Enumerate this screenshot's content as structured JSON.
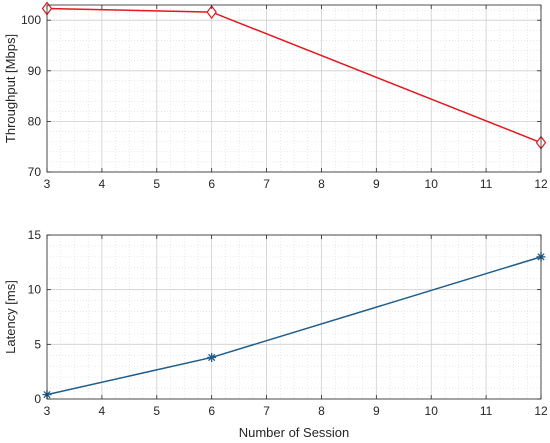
{
  "chart_data": [
    {
      "type": "line",
      "title": "",
      "xlabel": "",
      "ylabel": "Throughput [Mbps]",
      "xlim": [
        3,
        12
      ],
      "ylim": [
        70,
        103
      ],
      "xticks": [
        3,
        4,
        5,
        6,
        7,
        8,
        9,
        10,
        11,
        12
      ],
      "yticks": [
        70,
        80,
        90,
        100
      ],
      "grid": true,
      "minor_grid": true,
      "series": [
        {
          "color": "#e4181e",
          "marker": "diamond",
          "x": [
            3,
            6,
            12
          ],
          "y": [
            102.3,
            101.6,
            75.8
          ]
        }
      ]
    },
    {
      "type": "line",
      "title": "",
      "xlabel": "Number of Session",
      "ylabel": "Latency [ms]",
      "xlim": [
        3,
        12
      ],
      "ylim": [
        0,
        15
      ],
      "xticks": [
        3,
        4,
        5,
        6,
        7,
        8,
        9,
        10,
        11,
        12
      ],
      "yticks": [
        0,
        5,
        10,
        15
      ],
      "grid": true,
      "minor_grid": true,
      "series": [
        {
          "color": "#1f5e8c",
          "marker": "asterisk",
          "x": [
            3,
            6,
            12
          ],
          "y": [
            0.4,
            3.8,
            13.0
          ]
        }
      ]
    }
  ]
}
